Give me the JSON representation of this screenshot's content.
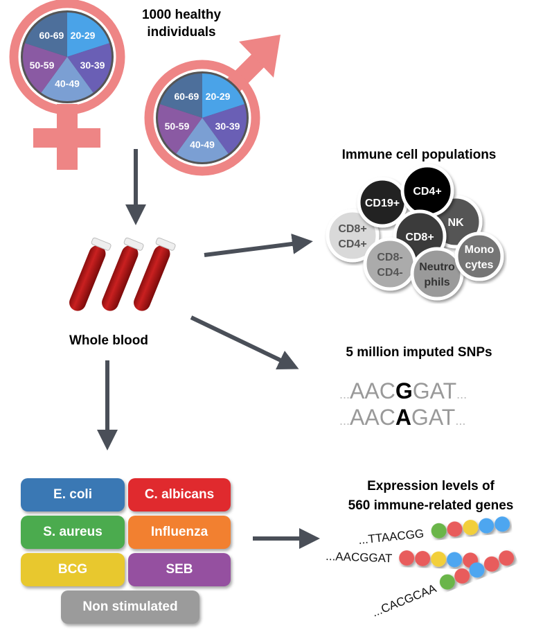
{
  "title": [
    "1000 healthy",
    "individuals"
  ],
  "age_groups": [
    "20-29",
    "30-39",
    "40-49",
    "50-59",
    "60-69"
  ],
  "age_colors": [
    "#4aa3e8",
    "#6a5fb5",
    "#7b9fd3",
    "#8a5aa3",
    "#4d6f9b"
  ],
  "symbol_color": "#ee8585",
  "whole_blood": "Whole blood",
  "cells": {
    "title": "Immune cell populations",
    "items": [
      {
        "label": [
          "CD8+",
          "CD4+"
        ],
        "fill": "#d9d9d9",
        "text": "#555"
      },
      {
        "label": [
          "CD19+"
        ],
        "fill": "#222222",
        "text": "#fff"
      },
      {
        "label": [
          "NK"
        ],
        "fill": "#555555",
        "text": "#fff"
      },
      {
        "label": [
          "CD4+"
        ],
        "fill": "#000000",
        "text": "#fff"
      },
      {
        "label": [
          "CD8+"
        ],
        "fill": "#3a3a3a",
        "text": "#fff"
      },
      {
        "label": [
          "CD8-",
          "CD4-"
        ],
        "fill": "#ababab",
        "text": "#555"
      },
      {
        "label": [
          "Neutro",
          "phils"
        ],
        "fill": "#9a9a9a",
        "text": "#333"
      },
      {
        "label": [
          "Mono",
          "cytes"
        ],
        "fill": "#757575",
        "text": "#fff"
      }
    ]
  },
  "snps": {
    "title": "5 million imputed SNPs",
    "seq1": {
      "pre": "AAC",
      "alt": "G",
      "post": "GAT"
    },
    "seq2": {
      "pre": "AAC",
      "alt": "A",
      "post": "GAT"
    },
    "ellipsis": "..."
  },
  "stimuli": [
    {
      "label": "E. coli",
      "color": "#3a78b4"
    },
    {
      "label": "C. albicans",
      "color": "#e02a2e"
    },
    {
      "label": "S. aureus",
      "color": "#4bab4e"
    },
    {
      "label": "Influenza",
      "color": "#f28030"
    },
    {
      "label": "BCG",
      "color": "#e8c82e"
    },
    {
      "label": "SEB",
      "color": "#9550a0"
    },
    {
      "label": "Non stimulated",
      "color": "#9b9b9b"
    }
  ],
  "expression": {
    "title": [
      "Expression levels of",
      "560 immune-related genes"
    ],
    "genes": [
      {
        "seq": "...TTAACGG",
        "beads": [
          "#6bb54a",
          "#e85c5c",
          "#f2cf3a",
          "#4ea6f0",
          "#4ea6f0"
        ]
      },
      {
        "seq": "...AACGGAT",
        "beads": [
          "#e85c5c",
          "#e85c5c",
          "#f2cf3a",
          "#4ea6f0",
          "#e85c5c"
        ]
      },
      {
        "seq": "...CACGCAA",
        "beads": [
          "#6bb54a",
          "#e85c5c",
          "#4ea6f0",
          "#e85c5c",
          "#e85c5c"
        ]
      }
    ]
  }
}
